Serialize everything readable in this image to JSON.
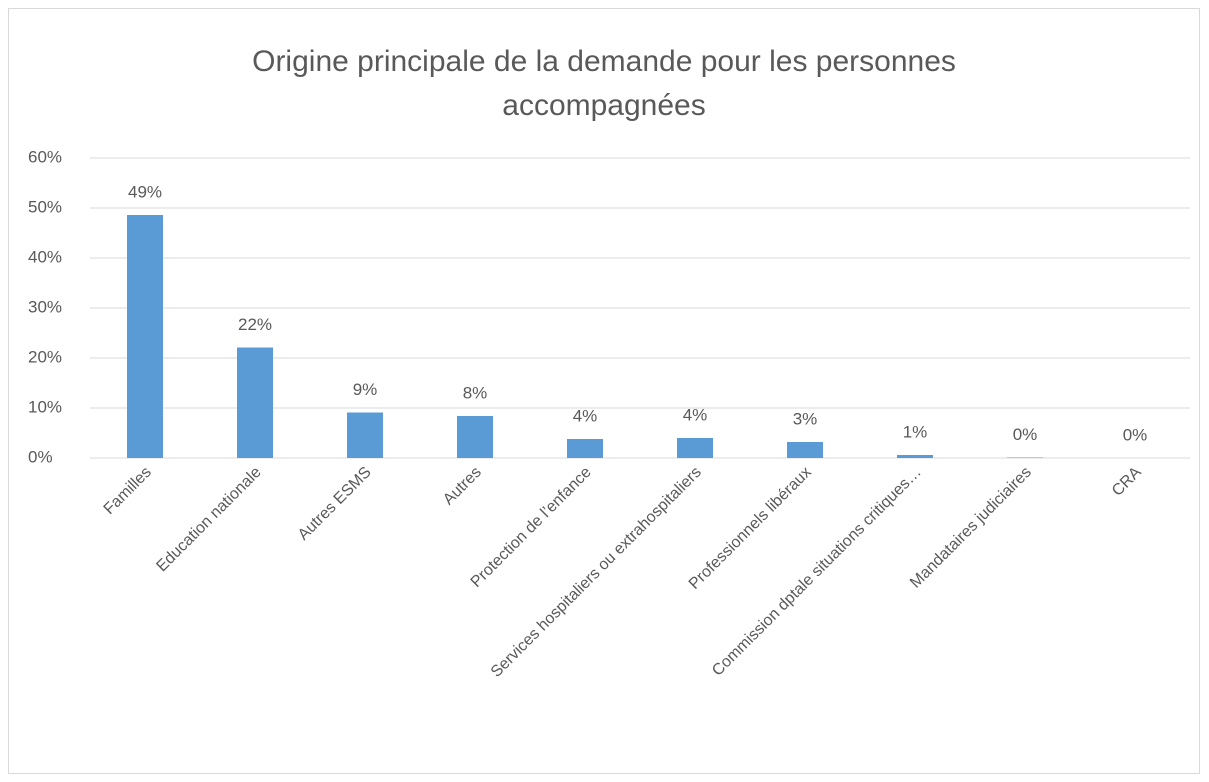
{
  "chart_data": {
    "type": "bar",
    "title": "Origine principale de la demande pour les personnes accompagnées",
    "categories": [
      "Familles",
      "Education nationale",
      "Autres ESMS",
      "Autres",
      "Protection de l’enfance",
      "Services hospitaliers ou extrahospitaliers",
      "Professionnels libéraux",
      "Commission dptale situations critiques…",
      "Mandataires judiciaires",
      "CRA"
    ],
    "values": [
      48.6,
      22.1,
      9.1,
      8.4,
      3.8,
      4.0,
      3.2,
      0.6,
      0.1,
      0
    ],
    "value_labels": [
      "49%",
      "22%",
      "9%",
      "8%",
      "4%",
      "4%",
      "3%",
      "1%",
      "0%",
      "0%"
    ],
    "color": "#5b9bd5",
    "ylim": [
      0,
      60
    ],
    "yticks": [
      {
        "value": 0,
        "label": "0%"
      },
      {
        "value": 10,
        "label": "10%"
      },
      {
        "value": 20,
        "label": "20%"
      },
      {
        "value": 30,
        "label": "30%"
      },
      {
        "value": 40,
        "label": "40%"
      },
      {
        "value": 50,
        "label": "50%"
      },
      {
        "value": 60,
        "label": "60%"
      }
    ],
    "grid": true
  }
}
